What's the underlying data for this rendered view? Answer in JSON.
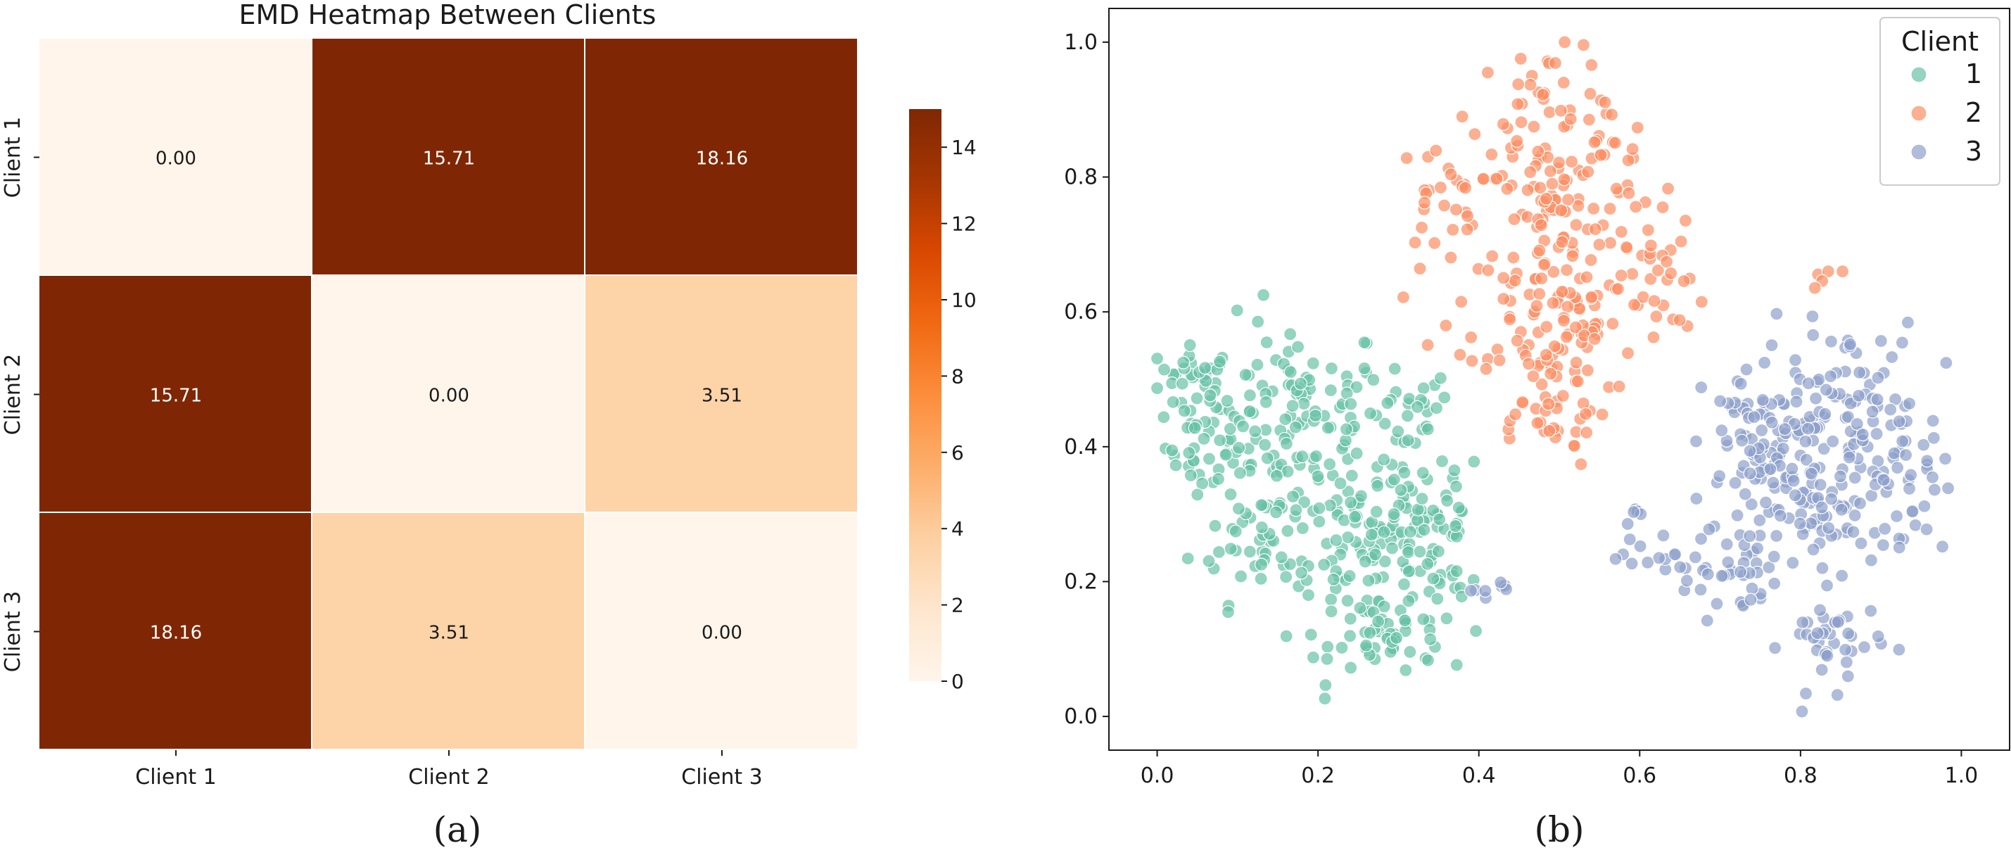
{
  "chart_data": [
    {
      "type": "heatmap",
      "title": "EMD Heatmap Between Clients",
      "row_labels": [
        "Client 1",
        "Client 2",
        "Client 3"
      ],
      "col_labels": [
        "Client 1",
        "Client 2",
        "Client 3"
      ],
      "values": [
        [
          0.0,
          15.71,
          18.16
        ],
        [
          15.71,
          0.0,
          3.51
        ],
        [
          18.16,
          3.51,
          0.0
        ]
      ],
      "value_labels": [
        [
          "0.00",
          "15.71",
          "18.16"
        ],
        [
          "15.71",
          "0.00",
          "3.51"
        ],
        [
          "18.16",
          "3.51",
          "0.00"
        ]
      ],
      "colorbar": {
        "min": 0,
        "max": 15,
        "ticks": [
          "0",
          "2",
          "4",
          "6",
          "8",
          "10",
          "12",
          "14"
        ],
        "cmap": "Oranges"
      },
      "caption": "(a)"
    },
    {
      "type": "scatter",
      "xlim": [
        -0.06,
        1.06
      ],
      "ylim": [
        -0.05,
        1.05
      ],
      "xticks": [
        "0.0",
        "0.2",
        "0.4",
        "0.6",
        "0.8",
        "1.0"
      ],
      "yticks": [
        "0.0",
        "0.2",
        "0.4",
        "0.6",
        "0.8",
        "1.0"
      ],
      "legend": {
        "title": "Client",
        "placement": "top-right"
      },
      "series": [
        {
          "name": "1",
          "color": "#66c2a5",
          "clusters": [
            {
              "cx": 0.05,
              "cy": 0.5,
              "sx": 0.025,
              "sy": 0.025,
              "n": 30
            },
            {
              "cx": 0.07,
              "cy": 0.4,
              "sx": 0.03,
              "sy": 0.035,
              "n": 40
            },
            {
              "cx": 0.17,
              "cy": 0.45,
              "sx": 0.06,
              "sy": 0.07,
              "n": 110
            },
            {
              "cx": 0.14,
              "cy": 0.27,
              "sx": 0.05,
              "sy": 0.05,
              "n": 60
            },
            {
              "cx": 0.26,
              "cy": 0.23,
              "sx": 0.05,
              "sy": 0.06,
              "n": 90
            },
            {
              "cx": 0.33,
              "cy": 0.3,
              "sx": 0.04,
              "sy": 0.05,
              "n": 60
            },
            {
              "cx": 0.31,
              "cy": 0.44,
              "sx": 0.03,
              "sy": 0.04,
              "n": 25
            },
            {
              "cx": 0.3,
              "cy": 0.11,
              "sx": 0.04,
              "sy": 0.025,
              "n": 40
            },
            {
              "cx": 0.37,
              "cy": 0.2,
              "sx": 0.02,
              "sy": 0.015,
              "n": 12
            }
          ]
        },
        {
          "name": "2",
          "color": "#fc8d62",
          "clusters": [
            {
              "cx": 0.48,
              "cy": 0.9,
              "sx": 0.045,
              "sy": 0.05,
              "n": 40
            },
            {
              "cx": 0.54,
              "cy": 0.85,
              "sx": 0.04,
              "sy": 0.04,
              "n": 30
            },
            {
              "cx": 0.35,
              "cy": 0.77,
              "sx": 0.025,
              "sy": 0.04,
              "n": 25
            },
            {
              "cx": 0.49,
              "cy": 0.74,
              "sx": 0.05,
              "sy": 0.05,
              "n": 60
            },
            {
              "cx": 0.51,
              "cy": 0.61,
              "sx": 0.07,
              "sy": 0.05,
              "n": 100
            },
            {
              "cx": 0.48,
              "cy": 0.47,
              "sx": 0.04,
              "sy": 0.05,
              "n": 50
            },
            {
              "cx": 0.62,
              "cy": 0.68,
              "sx": 0.02,
              "sy": 0.05,
              "n": 20
            },
            {
              "cx": 0.83,
              "cy": 0.65,
              "sx": 0.01,
              "sy": 0.01,
              "n": 5
            }
          ]
        },
        {
          "name": "3",
          "color": "#8da0cb",
          "clusters": [
            {
              "cx": 0.7,
              "cy": 0.22,
              "sx": 0.035,
              "sy": 0.035,
              "n": 45
            },
            {
              "cx": 0.76,
              "cy": 0.4,
              "sx": 0.04,
              "sy": 0.06,
              "n": 80
            },
            {
              "cx": 0.85,
              "cy": 0.44,
              "sx": 0.05,
              "sy": 0.07,
              "n": 110
            },
            {
              "cx": 0.82,
              "cy": 0.3,
              "sx": 0.06,
              "sy": 0.045,
              "n": 60
            },
            {
              "cx": 0.93,
              "cy": 0.36,
              "sx": 0.03,
              "sy": 0.05,
              "n": 35
            },
            {
              "cx": 0.84,
              "cy": 0.11,
              "sx": 0.03,
              "sy": 0.035,
              "n": 40
            },
            {
              "cx": 0.41,
              "cy": 0.19,
              "sx": 0.015,
              "sy": 0.006,
              "n": 8
            },
            {
              "cx": 0.59,
              "cy": 0.27,
              "sx": 0.01,
              "sy": 0.03,
              "n": 10
            }
          ]
        }
      ],
      "caption": "(b)"
    }
  ]
}
